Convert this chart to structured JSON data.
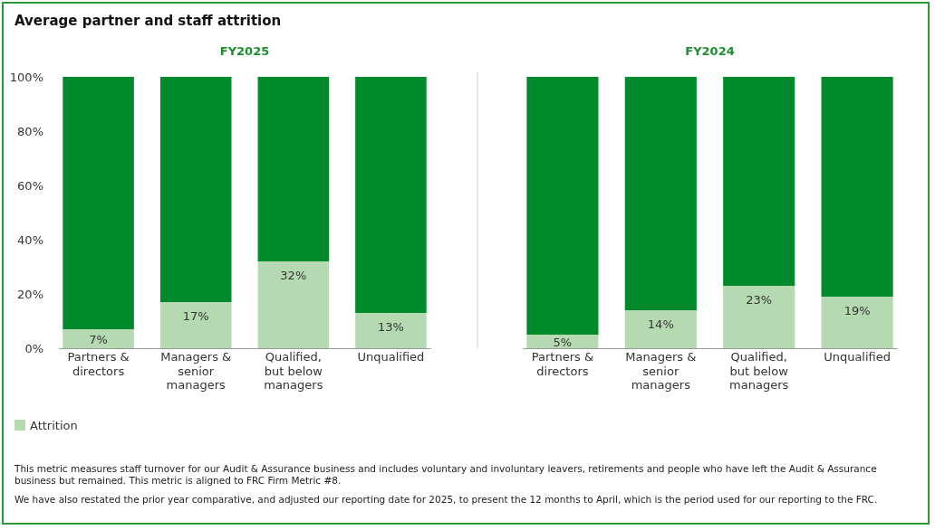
{
  "chart_data": [
    {
      "type": "bar",
      "title": "Average partner and staff attrition",
      "subtitle": "FY2025",
      "categories": [
        "Partners & directors",
        "Managers & senior managers",
        "Qualified, but below managers",
        "Unqualified"
      ],
      "stacked": true,
      "ylim": [
        0,
        100
      ],
      "yticks": [
        {
          "value": 0,
          "label": "0%"
        },
        {
          "value": 20,
          "label": "20%"
        },
        {
          "value": 40,
          "label": "40%"
        },
        {
          "value": 60,
          "label": "60%"
        },
        {
          "value": 80,
          "label": "80%"
        },
        {
          "value": 100,
          "label": "100%"
        }
      ],
      "grid": false,
      "legend": "bottom left",
      "series": [
        {
          "name": "Attrition",
          "color": "#b5dab1",
          "values": [
            7,
            17,
            32,
            13
          ],
          "value_labels": [
            "7%",
            "17%",
            "32%",
            "13%"
          ]
        },
        {
          "color": "#008a2b",
          "values": [
            93,
            83,
            68,
            87
          ]
        }
      ],
      "annotations": [
        "This metric measures staff turnover for our Audit & Assurance business and includes voluntary and involuntary leavers, retirements and people who have left the Audit & Assurance business but remained. This metric is aligned to FRC Firm Metric #8.",
        "We have also restated the prior year comparative, and adjusted our reporting date for 2025, to present the 12 months to April, which is the period used for our reporting to the FRC."
      ]
    },
    {
      "type": "bar",
      "title": "FY2024",
      "categories": [
        "Partners & directors",
        "Managers & senior managers",
        "Qualified, but below managers",
        "Unqualified"
      ],
      "stacked": true,
      "ylim": [
        0,
        100
      ],
      "tick_labels": "x",
      "grid": false,
      "series": [
        {
          "color": "#b5dab1",
          "values": [
            5,
            14,
            23,
            19
          ],
          "value_labels": [
            "5%",
            "14%",
            "23%",
            "19%"
          ]
        },
        {
          "color": "#008a2b",
          "values": [
            95,
            86,
            77,
            81
          ]
        }
      ]
    }
  ]
}
